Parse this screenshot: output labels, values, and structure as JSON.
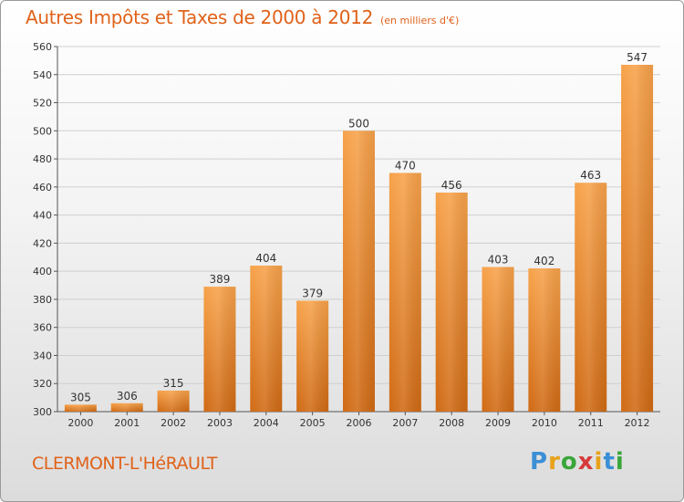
{
  "title": {
    "main": "Autres Impôts et Taxes de 2000 à 2012",
    "unit": "(en milliers d'€)"
  },
  "commune": "CLERMONT-L'HéRAULT",
  "logo": {
    "letters": [
      "P",
      "r",
      "o",
      "x",
      "i",
      "t",
      "i"
    ],
    "colors": [
      "#3a8fd6",
      "#e8a21a",
      "#3aa63a",
      "#d63a3a",
      "#e8a21a",
      "#3a8fd6",
      "#3aa63a"
    ]
  },
  "chart_data": {
    "type": "bar",
    "categories": [
      "2000",
      "2001",
      "2002",
      "2003",
      "2004",
      "2005",
      "2006",
      "2007",
      "2008",
      "2009",
      "2010",
      "2011",
      "2012"
    ],
    "values": [
      305,
      306,
      315,
      389,
      404,
      379,
      500,
      470,
      456,
      403,
      402,
      463,
      547
    ],
    "ylim": [
      300,
      560
    ],
    "yticks": [
      300,
      320,
      340,
      360,
      380,
      400,
      420,
      440,
      460,
      480,
      500,
      520,
      540,
      560
    ],
    "grid": true,
    "bar_color": "#f39a3c"
  }
}
